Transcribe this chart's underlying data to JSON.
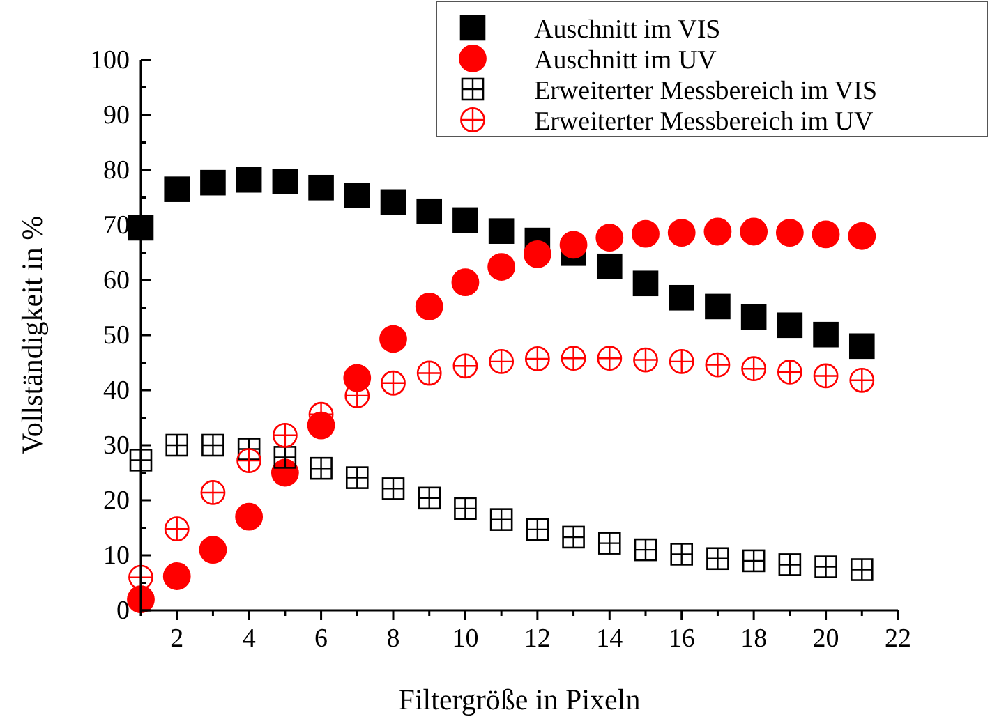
{
  "chart_data": {
    "type": "scatter",
    "xlabel": "Filtergröße in Pixeln",
    "ylabel": "Vollständigkeit in %",
    "x": [
      1,
      2,
      3,
      4,
      5,
      6,
      7,
      8,
      9,
      10,
      11,
      12,
      13,
      14,
      15,
      16,
      17,
      18,
      19,
      20,
      21
    ],
    "xlim": [
      1,
      22
    ],
    "ylim": [
      0,
      100
    ],
    "xticks": [
      {
        "value": 1,
        "label": null
      },
      2,
      {
        "value": 3,
        "label": null
      },
      4,
      {
        "value": 5,
        "label": null
      },
      6,
      {
        "value": 7,
        "label": null
      },
      8,
      {
        "value": 9,
        "label": null
      },
      10,
      {
        "value": 11,
        "label": null
      },
      12,
      {
        "value": 13,
        "label": null
      },
      14,
      {
        "value": 15,
        "label": null
      },
      16,
      {
        "value": 17,
        "label": null
      },
      18,
      {
        "value": 19,
        "label": null
      },
      20,
      {
        "value": 21,
        "label": null
      },
      22
    ],
    "yticks": [
      0,
      {
        "value": 5,
        "label": null
      },
      10,
      {
        "value": 15,
        "label": null
      },
      20,
      {
        "value": 25,
        "label": null
      },
      30,
      {
        "value": 35,
        "label": null
      },
      40,
      {
        "value": 45,
        "label": null
      },
      50,
      {
        "value": 55,
        "label": null
      },
      60,
      {
        "value": 65,
        "label": null
      },
      70,
      {
        "value": 75,
        "label": null
      },
      80,
      {
        "value": 85,
        "label": null
      },
      90,
      {
        "value": 95,
        "label": null
      },
      100
    ],
    "legend": "top right",
    "grid": false,
    "series": [
      {
        "name": "Auschnitt im VIS",
        "color": "#000000",
        "marker": "square",
        "values": [
          69.5,
          76.5,
          77.7,
          78.2,
          77.9,
          76.8,
          75.4,
          74.2,
          72.5,
          70.9,
          68.9,
          67.2,
          64.9,
          62.5,
          59.4,
          56.8,
          55.2,
          53.3,
          51.8,
          50.1,
          48.0
        ]
      },
      {
        "name": "Auschnitt im UV",
        "color": "#ff0000",
        "marker": "circle",
        "values": [
          2,
          6.2,
          11,
          17,
          25,
          33.6,
          42.2,
          49.3,
          55.2,
          59.6,
          62.4,
          64.7,
          66.4,
          67.7,
          68.4,
          68.6,
          68.8,
          68.8,
          68.6,
          68.3,
          68
        ]
      },
      {
        "name": "Erweiterter Messbereich im VIS",
        "color": "#000000",
        "marker": "square",
        "values": [
          27.3,
          30,
          30,
          29.3,
          27.8,
          25.8,
          24.1,
          22.1,
          20.4,
          18.5,
          16.5,
          14.7,
          13.3,
          12.2,
          11,
          10.2,
          9.4,
          9,
          8.3,
          7.9,
          7.4
        ]
      },
      {
        "name": "Erweiterter Messbereich im UV",
        "color": "#ff0000",
        "marker": "circle",
        "values": [
          6,
          14.8,
          21.4,
          27.2,
          31.8,
          35.6,
          39,
          41.3,
          43.1,
          44.4,
          45.2,
          45.7,
          45.8,
          45.8,
          45.5,
          45.2,
          44.6,
          43.9,
          43.3,
          42.6,
          41.8
        ]
      }
    ]
  }
}
